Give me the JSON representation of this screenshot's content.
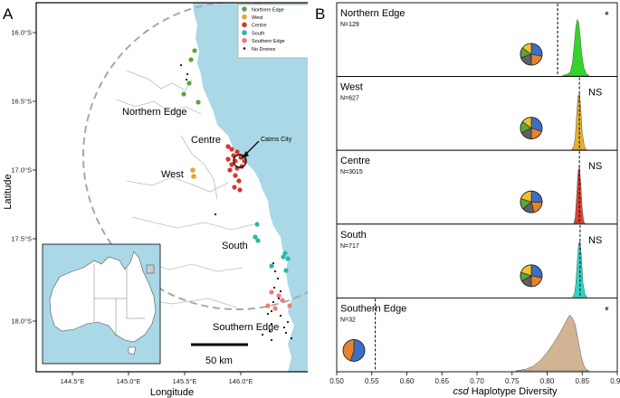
{
  "panels": {
    "a": "A",
    "b": "B"
  },
  "map": {
    "xlabel": "Longitude",
    "ylabel": "Latitude",
    "xticks": [
      "144.5°E",
      "145.0°E",
      "145.5°E",
      "146.0°E"
    ],
    "yticks": [
      "16.0°S",
      "16.5°S",
      "17.0°S",
      "17.5°S",
      "18.0°S"
    ],
    "region_labels": {
      "northern_edge": "Northern Edge",
      "centre": "Centre",
      "west": "West",
      "south": "South",
      "southern_edge": "Southern Edge"
    },
    "city_label": "Cairns City",
    "scalebar_label": "50 km",
    "legend": [
      {
        "label": "Northern Edge",
        "color": "#5aa53c"
      },
      {
        "label": "West",
        "color": "#e2a72e"
      },
      {
        "label": "Centre",
        "color": "#d9342b"
      },
      {
        "label": "South",
        "color": "#2ab8a6"
      },
      {
        "label": "Southern Edge",
        "color": "#ee7b7b"
      },
      {
        "label": "No Drones",
        "color": "#111111"
      }
    ],
    "colors": {
      "sea": "#abd8e6",
      "land": "#ffffff",
      "border": "#c8c8c8"
    }
  },
  "chart_data": {
    "type": "area",
    "xlabel_italic": "csd",
    "xlabel_rest": " Haplotype Diversity",
    "x_ticks": [
      "0.50",
      "0.55",
      "0.60",
      "0.65",
      "0.70",
      "0.75",
      "0.80",
      "0.85",
      "0.90"
    ],
    "xlim": [
      0.5,
      0.9
    ],
    "series": [
      {
        "name": "Northern Edge",
        "n": "N=129",
        "sig": "*",
        "color": "#34d42a",
        "observed": 0.815,
        "dist": [
          [
            0.822,
            0
          ],
          [
            0.828,
            0.02
          ],
          [
            0.833,
            0.06
          ],
          [
            0.836,
            0.22
          ],
          [
            0.839,
            0.58
          ],
          [
            0.841,
            0.86
          ],
          [
            0.843,
            0.98
          ],
          [
            0.845,
            0.92
          ],
          [
            0.847,
            0.7
          ],
          [
            0.849,
            0.42
          ],
          [
            0.852,
            0.15
          ],
          [
            0.856,
            0.03
          ],
          [
            0.86,
            0
          ]
        ],
        "pie": [
          {
            "v": 0.28,
            "c": "#3c6fc4"
          },
          {
            "v": 0.22,
            "c": "#e8822e"
          },
          {
            "v": 0.2,
            "c": "#606060"
          },
          {
            "v": 0.15,
            "c": "#5aa53c"
          },
          {
            "v": 0.15,
            "c": "#f2c12e"
          }
        ]
      },
      {
        "name": "West",
        "n": "N=627",
        "sig": "NS",
        "color": "#e3b032",
        "observed": 0.846,
        "dist": [
          [
            0.835,
            0
          ],
          [
            0.838,
            0.05
          ],
          [
            0.84,
            0.2
          ],
          [
            0.842,
            0.58
          ],
          [
            0.844,
            0.92
          ],
          [
            0.846,
            0.98
          ],
          [
            0.848,
            0.72
          ],
          [
            0.85,
            0.3
          ],
          [
            0.853,
            0.06
          ],
          [
            0.856,
            0
          ]
        ],
        "pie": [
          {
            "v": 0.3,
            "c": "#3c6fc4"
          },
          {
            "v": 0.2,
            "c": "#e8822e"
          },
          {
            "v": 0.18,
            "c": "#606060"
          },
          {
            "v": 0.17,
            "c": "#5aa53c"
          },
          {
            "v": 0.15,
            "c": "#f2c12e"
          }
        ]
      },
      {
        "name": "Centre",
        "n": "N=3015",
        "sig": "NS",
        "color": "#d94430",
        "observed": 0.846,
        "dist": [
          [
            0.838,
            0
          ],
          [
            0.84,
            0.1
          ],
          [
            0.842,
            0.45
          ],
          [
            0.844,
            0.88
          ],
          [
            0.846,
            0.99
          ],
          [
            0.848,
            0.7
          ],
          [
            0.85,
            0.25
          ],
          [
            0.852,
            0.04
          ],
          [
            0.854,
            0
          ]
        ],
        "pie": [
          {
            "v": 0.26,
            "c": "#3c6fc4"
          },
          {
            "v": 0.2,
            "c": "#e8822e"
          },
          {
            "v": 0.18,
            "c": "#606060"
          },
          {
            "v": 0.16,
            "c": "#5aa53c"
          },
          {
            "v": 0.2,
            "c": "#f2c12e"
          }
        ]
      },
      {
        "name": "South",
        "n": "N=717",
        "sig": "NS",
        "color": "#2ed6c4",
        "observed": 0.847,
        "dist": [
          [
            0.836,
            0
          ],
          [
            0.839,
            0.06
          ],
          [
            0.841,
            0.25
          ],
          [
            0.843,
            0.62
          ],
          [
            0.845,
            0.94
          ],
          [
            0.847,
            0.97
          ],
          [
            0.849,
            0.66
          ],
          [
            0.851,
            0.25
          ],
          [
            0.854,
            0.05
          ],
          [
            0.857,
            0
          ]
        ],
        "pie": [
          {
            "v": 0.28,
            "c": "#3c6fc4"
          },
          {
            "v": 0.22,
            "c": "#e8822e"
          },
          {
            "v": 0.17,
            "c": "#606060"
          },
          {
            "v": 0.13,
            "c": "#5aa53c"
          },
          {
            "v": 0.2,
            "c": "#f2c12e"
          }
        ]
      },
      {
        "name": "Southern Edge",
        "n": "N=32",
        "sig": "*",
        "color": "#d2b494",
        "observed": 0.555,
        "dist": [
          [
            0.755,
            0
          ],
          [
            0.77,
            0.03
          ],
          [
            0.78,
            0.08
          ],
          [
            0.79,
            0.18
          ],
          [
            0.8,
            0.32
          ],
          [
            0.81,
            0.5
          ],
          [
            0.82,
            0.7
          ],
          [
            0.826,
            0.84
          ],
          [
            0.832,
            0.97
          ],
          [
            0.836,
            0.92
          ],
          [
            0.84,
            0.8
          ],
          [
            0.844,
            0.55
          ],
          [
            0.848,
            0.28
          ],
          [
            0.852,
            0.1
          ],
          [
            0.856,
            0.02
          ],
          [
            0.86,
            0
          ]
        ],
        "pie": [
          {
            "v": 0.55,
            "c": "#3c6fc4"
          },
          {
            "v": 0.45,
            "c": "#e8822e"
          }
        ]
      }
    ]
  }
}
